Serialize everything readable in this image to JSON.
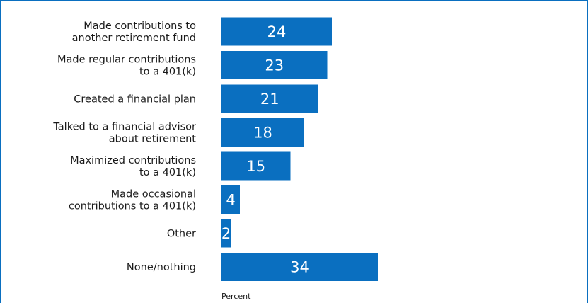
{
  "colors": {
    "bar": "#0a6fc0",
    "frame": "#0a6fc0",
    "value_text": "#ffffff",
    "label_text": "#1a1a1a"
  },
  "chart_data": {
    "type": "bar",
    "orientation": "horizontal",
    "categories": [
      [
        "Made contributions to",
        "another retirement fund"
      ],
      [
        "Made regular contributions",
        "to a 401(k)"
      ],
      [
        "Created a financial plan"
      ],
      [
        "Talked to a financial advisor",
        "about retirement"
      ],
      [
        "Maximized contributions",
        "to a 401(k)"
      ],
      [
        "Made occasional",
        "contributions to a 401(k)"
      ],
      [
        "Other"
      ],
      [
        "None/nothing"
      ]
    ],
    "values": [
      24,
      23,
      21,
      18,
      15,
      4,
      2,
      34
    ],
    "xlabel": "Percent",
    "ylabel": "",
    "title": "",
    "xlim": [
      0,
      100
    ],
    "data_labels": true,
    "grid": false,
    "legend": "none"
  }
}
